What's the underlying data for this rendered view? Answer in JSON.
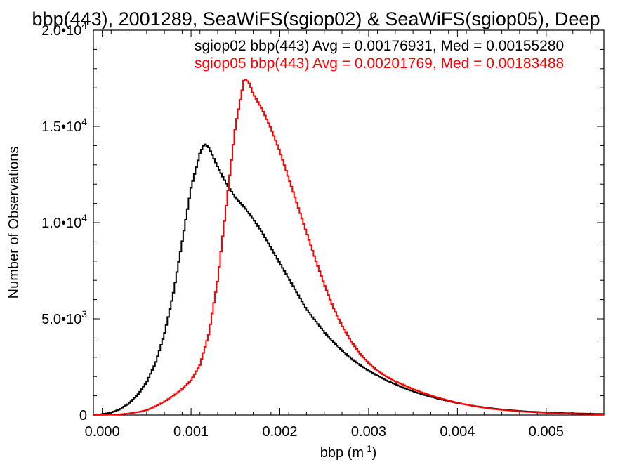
{
  "chart_data": {
    "type": "line",
    "title": "bbp(443), 2001289, SeaWiFS(sgiop02) & SeaWiFS(sgiop05), Deep",
    "xlabel_base": "bbp (m",
    "xlabel_exp": "-1",
    "xlabel_close": ")",
    "ylabel": "Number of Observations",
    "xlim": [
      -0.0001,
      0.00565
    ],
    "ylim": [
      0,
      20000
    ],
    "x_ticks": [
      {
        "value": 0.0,
        "label": "0.000"
      },
      {
        "value": 0.001,
        "label": "0.001"
      },
      {
        "value": 0.002,
        "label": "0.002"
      },
      {
        "value": 0.003,
        "label": "0.003"
      },
      {
        "value": 0.004,
        "label": "0.004"
      },
      {
        "value": 0.005,
        "label": "0.005"
      }
    ],
    "y_ticks": [
      {
        "value": 0,
        "mant": "0",
        "exp": ""
      },
      {
        "value": 5000,
        "mant": "5.0•10",
        "exp": "3"
      },
      {
        "value": 10000,
        "mant": "1.0•10",
        "exp": "4"
      },
      {
        "value": 15000,
        "mant": "1.5•10",
        "exp": "4"
      },
      {
        "value": 20000,
        "mant": "2.0•10",
        "exp": "4"
      }
    ],
    "legend_position": "top-right",
    "annotations": [
      {
        "text": "sgiop02 bbp(443) Avg = 0.00176931, Med = 0.00155280",
        "color": "#000000"
      },
      {
        "text": "sgiop05 bbp(443) Avg = 0.00201769, Med = 0.00183488",
        "color": "#ff0000"
      }
    ],
    "series": [
      {
        "color": "#000000",
        "points": [
          [
            -0.0001,
            0
          ],
          [
            0.0,
            50
          ],
          [
            0.0001,
            130
          ],
          [
            0.0002,
            300
          ],
          [
            0.0003,
            600
          ],
          [
            0.0004,
            1050
          ],
          [
            0.0005,
            1700
          ],
          [
            0.0006,
            2700
          ],
          [
            0.0007,
            4200
          ],
          [
            0.0008,
            6300
          ],
          [
            0.0009,
            9000
          ],
          [
            0.001,
            11800
          ],
          [
            0.0011,
            13600
          ],
          [
            0.00115,
            14100
          ],
          [
            0.0012,
            13900
          ],
          [
            0.0013,
            12900
          ],
          [
            0.0014,
            12000
          ],
          [
            0.0015,
            11300
          ],
          [
            0.0016,
            10800
          ],
          [
            0.0017,
            10200
          ],
          [
            0.0018,
            9500
          ],
          [
            0.0019,
            8700
          ],
          [
            0.002,
            7900
          ],
          [
            0.0021,
            7100
          ],
          [
            0.0022,
            6300
          ],
          [
            0.0023,
            5500
          ],
          [
            0.0024,
            4900
          ],
          [
            0.0025,
            4300
          ],
          [
            0.0026,
            3800
          ],
          [
            0.0027,
            3350
          ],
          [
            0.0028,
            2950
          ],
          [
            0.0029,
            2600
          ],
          [
            0.003,
            2300
          ],
          [
            0.0031,
            2050
          ],
          [
            0.0032,
            1800
          ],
          [
            0.0033,
            1600
          ],
          [
            0.0034,
            1400
          ],
          [
            0.0035,
            1230
          ],
          [
            0.0036,
            1080
          ],
          [
            0.0037,
            950
          ],
          [
            0.0038,
            830
          ],
          [
            0.0039,
            720
          ],
          [
            0.004,
            620
          ],
          [
            0.0041,
            540
          ],
          [
            0.0042,
            460
          ],
          [
            0.0043,
            400
          ],
          [
            0.0044,
            340
          ],
          [
            0.0045,
            290
          ],
          [
            0.0046,
            250
          ],
          [
            0.0047,
            210
          ],
          [
            0.0048,
            180
          ],
          [
            0.0049,
            160
          ],
          [
            0.005,
            140
          ],
          [
            0.0051,
            120
          ],
          [
            0.0052,
            100
          ],
          [
            0.0053,
            90
          ],
          [
            0.0054,
            80
          ],
          [
            0.0055,
            70
          ],
          [
            0.0056,
            60
          ],
          [
            0.00565,
            55
          ]
        ]
      },
      {
        "color": "#ff0000",
        "points": [
          [
            -0.0001,
            0
          ],
          [
            0.0,
            10
          ],
          [
            0.0001,
            20
          ],
          [
            0.0002,
            40
          ],
          [
            0.0003,
            80
          ],
          [
            0.0004,
            150
          ],
          [
            0.0005,
            250
          ],
          [
            0.0006,
            450
          ],
          [
            0.0007,
            700
          ],
          [
            0.0008,
            1000
          ],
          [
            0.0009,
            1350
          ],
          [
            0.001,
            1800
          ],
          [
            0.0011,
            2600
          ],
          [
            0.0012,
            4200
          ],
          [
            0.0013,
            7000
          ],
          [
            0.0014,
            11000
          ],
          [
            0.0015,
            15000
          ],
          [
            0.0016,
            17500
          ],
          [
            0.00165,
            17300
          ],
          [
            0.0017,
            16700
          ],
          [
            0.0018,
            15900
          ],
          [
            0.0019,
            14900
          ],
          [
            0.002,
            13700
          ],
          [
            0.0021,
            12300
          ],
          [
            0.0022,
            10900
          ],
          [
            0.0023,
            9500
          ],
          [
            0.0024,
            8100
          ],
          [
            0.0025,
            6800
          ],
          [
            0.0026,
            5600
          ],
          [
            0.0027,
            4650
          ],
          [
            0.0028,
            3850
          ],
          [
            0.0029,
            3200
          ],
          [
            0.003,
            2700
          ],
          [
            0.0031,
            2300
          ],
          [
            0.0032,
            2000
          ],
          [
            0.0033,
            1750
          ],
          [
            0.0034,
            1550
          ],
          [
            0.0035,
            1350
          ],
          [
            0.0036,
            1180
          ],
          [
            0.0037,
            1020
          ],
          [
            0.0038,
            880
          ],
          [
            0.0039,
            750
          ],
          [
            0.004,
            640
          ],
          [
            0.0041,
            540
          ],
          [
            0.0042,
            450
          ],
          [
            0.0043,
            380
          ],
          [
            0.0044,
            320
          ],
          [
            0.0045,
            270
          ],
          [
            0.0046,
            230
          ],
          [
            0.0047,
            190
          ],
          [
            0.0048,
            160
          ],
          [
            0.0049,
            135
          ],
          [
            0.005,
            115
          ],
          [
            0.0051,
            95
          ],
          [
            0.0052,
            80
          ],
          [
            0.0053,
            65
          ],
          [
            0.0054,
            55
          ],
          [
            0.0055,
            45
          ],
          [
            0.0056,
            38
          ],
          [
            0.00565,
            35
          ]
        ]
      }
    ]
  }
}
